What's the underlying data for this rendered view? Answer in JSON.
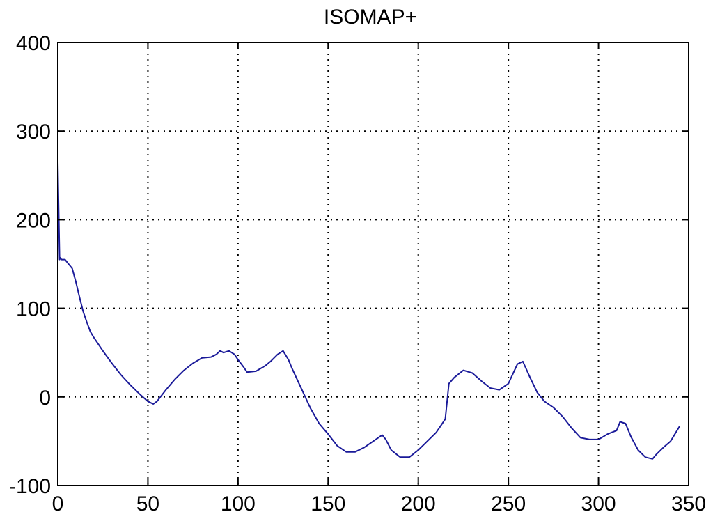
{
  "chart_data": {
    "type": "line",
    "title": "ISOMAP+",
    "xlabel": "",
    "ylabel": "",
    "xlim": [
      0,
      350
    ],
    "ylim": [
      -100,
      400
    ],
    "xticks": [
      0,
      50,
      100,
      150,
      200,
      250,
      300,
      350
    ],
    "yticks": [
      -100,
      0,
      100,
      200,
      300,
      400
    ],
    "grid": true,
    "legend": "none",
    "colors": {
      "line": "#1a1a99",
      "grid": "#000000",
      "axes": "#000000",
      "background": "#ffffff"
    },
    "series": [
      {
        "x": [
          0,
          1,
          1.5,
          2,
          4,
          6,
          8,
          10,
          12,
          14,
          16,
          18,
          20,
          25,
          30,
          35,
          40,
          45,
          50,
          53,
          55,
          60,
          65,
          70,
          75,
          80,
          85,
          88,
          90,
          92,
          95,
          98,
          100,
          103,
          105,
          110,
          115,
          118,
          122,
          125,
          128,
          130,
          135,
          140,
          145,
          150,
          155,
          160,
          165,
          170,
          175,
          180,
          182,
          185,
          190,
          195,
          200,
          205,
          210,
          215,
          217,
          220,
          225,
          230,
          235,
          240,
          245,
          250,
          255,
          258,
          262,
          266,
          270,
          275,
          280,
          285,
          290,
          295,
          300,
          305,
          310,
          312,
          315,
          318,
          322,
          326,
          330,
          332,
          336,
          340,
          345
        ],
        "y": [
          265,
          155,
          157,
          155,
          155,
          150,
          145,
          130,
          113,
          97,
          85,
          74,
          67,
          52,
          38,
          25,
          14,
          4,
          -5,
          -8,
          -5,
          8,
          20,
          30,
          38,
          44,
          45,
          48,
          52,
          50,
          52,
          48,
          42,
          34,
          28,
          29,
          35,
          40,
          48,
          52,
          42,
          32,
          10,
          -12,
          -30,
          -42,
          -55,
          -62,
          -62,
          -57,
          -50,
          -43,
          -48,
          -60,
          -68,
          -68,
          -60,
          -50,
          -40,
          -25,
          15,
          22,
          30,
          27,
          18,
          10,
          8,
          15,
          37,
          40,
          22,
          5,
          -5,
          -12,
          -22,
          -35,
          -46,
          -48,
          -48,
          -42,
          -38,
          -28,
          -30,
          -45,
          -60,
          -68,
          -70,
          -65,
          -57,
          -50,
          -33
        ]
      }
    ]
  }
}
